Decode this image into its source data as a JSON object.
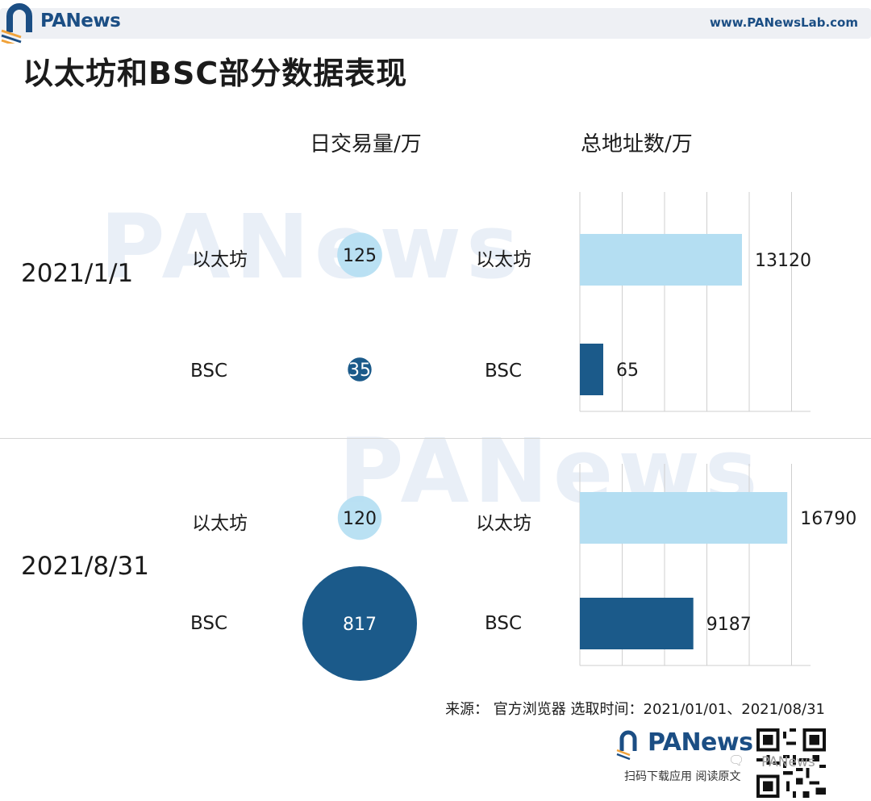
{
  "header": {
    "brand": "PANews",
    "url": "www.PANewsLab.com"
  },
  "title": "以太坊和BSC部分数据表现",
  "watermark": "PANews",
  "columns": {
    "volume": "日交易量/万",
    "address": "总地址数/万"
  },
  "chart_data": [
    {
      "type": "bubble",
      "title": "日交易量/万",
      "series_colors": {
        "以太坊": "#b4def2",
        "BSC": "#1b5a8a"
      },
      "groups": [
        {
          "label": "2021/1/1",
          "rows": [
            {
              "name": "以太坊",
              "value": 125
            },
            {
              "name": "BSC",
              "value": 35
            }
          ]
        },
        {
          "label": "2021/8/31",
          "rows": [
            {
              "name": "以太坊",
              "value": 120
            },
            {
              "name": "BSC",
              "value": 817
            }
          ]
        }
      ]
    },
    {
      "type": "bar",
      "orientation": "horizontal",
      "title": "总地址数/万",
      "grid": true,
      "series_colors": {
        "以太坊": "#b4def2",
        "BSC": "#1b5a8a"
      },
      "groups": [
        {
          "label": "2021/1/1",
          "rows": [
            {
              "name": "以太坊",
              "value": 13120
            },
            {
              "name": "BSC",
              "value": 65
            }
          ]
        },
        {
          "label": "2021/8/31",
          "rows": [
            {
              "name": "以太坊",
              "value": 16790
            },
            {
              "name": "BSC",
              "value": 9187
            }
          ]
        }
      ]
    }
  ],
  "source": "来源： 官方浏览器 选取时间：2021/01/01、2021/08/31",
  "footer": {
    "brand": "PANews",
    "caption": "扫码下载应用  阅读原文",
    "wechat_handle": "PANews"
  },
  "icons": [
    "panews-logo-icon",
    "qr-code-icon",
    "wechat-icon"
  ],
  "colors": {
    "brand_blue": "#1b4e84",
    "light_blue": "#b4def2",
    "dark_blue": "#1b5a8a",
    "logo_orange": "#f0a23a"
  }
}
